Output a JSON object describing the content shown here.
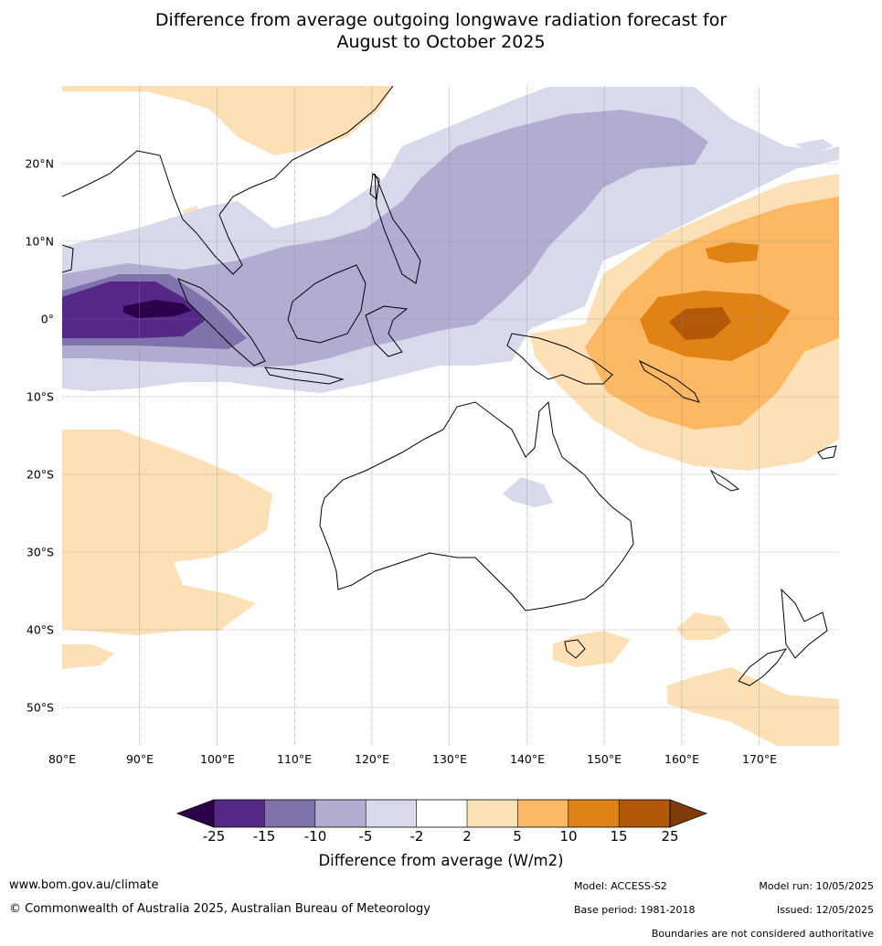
{
  "header": {
    "title_line1": "Difference from average outgoing longwave radiation forecast for",
    "title_line2": "August to October 2025"
  },
  "axes": {
    "lon_labels": [
      "80°E",
      "90°E",
      "100°E",
      "110°E",
      "120°E",
      "130°E",
      "140°E",
      "150°E",
      "160°E",
      "170°E"
    ],
    "lat_labels": [
      "20°N",
      "10°N",
      "0°",
      "10°S",
      "20°S",
      "30°S",
      "40°S",
      "50°S"
    ]
  },
  "legend": {
    "title": "Difference from average (W/m2)",
    "ticks": [
      "-25",
      "-15",
      "-10",
      "-5",
      "-2",
      "2",
      "5",
      "10",
      "15",
      "25"
    ],
    "colors": [
      "#2d004b",
      "#542788",
      "#8073ac",
      "#b2abd2",
      "#d8daeb",
      "#ffffff",
      "#fee0b6",
      "#fdb863",
      "#e08214",
      "#b35806",
      "#7f3b08"
    ]
  },
  "footer": {
    "website": "www.bom.gov.au/climate",
    "copyright": "© Commonwealth of Australia 2025, Australian Bureau of Meteorology",
    "model": "Model: ACCESS-S2",
    "base_period": "Base period: 1981-2018",
    "model_run": "Model run: 10/05/2025",
    "issued": "Issued: 12/05/2025",
    "disclaimer": "Boundaries are not considered authoritative"
  }
}
